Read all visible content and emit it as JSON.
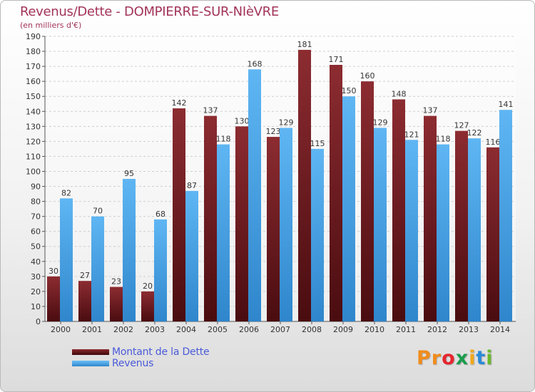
{
  "title": "Revenus/Dette - DOMPIERRE-SUR-NIèVRE",
  "subtitle": "(en milliers d'€)",
  "colors": {
    "dette": "#7a1c22",
    "revenus": "#4aa3e6",
    "text": "#a3345a",
    "legend_text": "#4a5ad8"
  },
  "legend": [
    {
      "label": "Montant de la Dette",
      "color": "#6b1418"
    },
    {
      "label": "Revenus",
      "color": "#4aa3e6"
    }
  ],
  "logo": {
    "text": "Proxiti",
    "colors": [
      "#f08c1c",
      "#f08c1c",
      "#e6262f",
      "#1c9c4c",
      "#f0a81c",
      "#2a8ad8",
      "#6ab82c"
    ]
  },
  "chart_data": {
    "type": "bar",
    "categories": [
      "2000",
      "2001",
      "2002",
      "2003",
      "2004",
      "2005",
      "2006",
      "2007",
      "2008",
      "2009",
      "2010",
      "2011",
      "2012",
      "2013",
      "2014"
    ],
    "series": [
      {
        "name": "Montant de la Dette",
        "values": [
          30,
          27,
          23,
          20,
          142,
          137,
          130,
          123,
          181,
          171,
          160,
          148,
          137,
          127,
          116
        ]
      },
      {
        "name": "Revenus",
        "values": [
          82,
          70,
          95,
          68,
          87,
          118,
          168,
          129,
          115,
          150,
          129,
          121,
          118,
          122,
          141
        ]
      }
    ],
    "ylim": [
      0,
      190
    ],
    "yticks": [
      0,
      10,
      20,
      30,
      40,
      50,
      60,
      70,
      80,
      90,
      100,
      110,
      120,
      130,
      140,
      150,
      160,
      170,
      180,
      190
    ],
    "grid": true,
    "legend_position": "bottom-left"
  }
}
